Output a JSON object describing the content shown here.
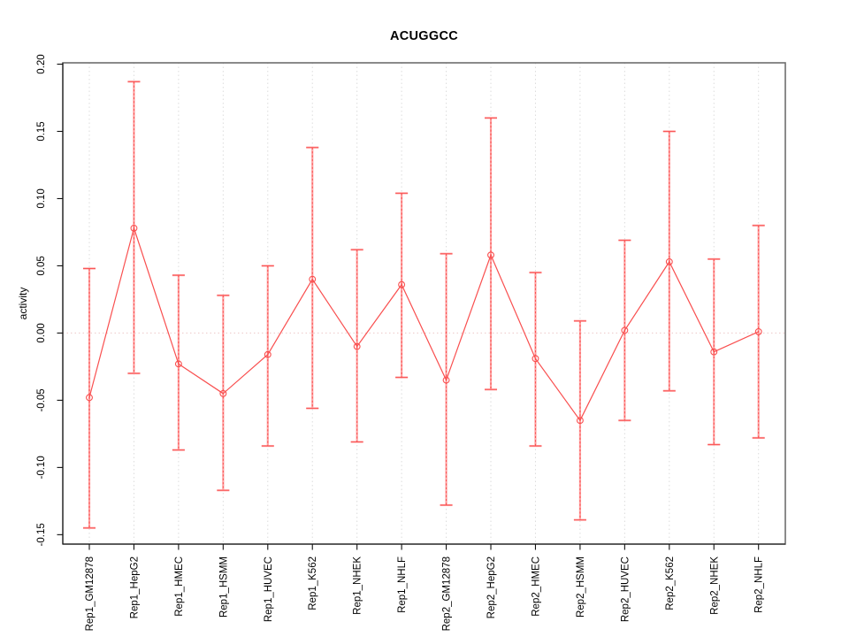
{
  "title": "ACUGGCC",
  "chart_data": {
    "type": "line",
    "subtype": "points-with-error-bars",
    "title": "ACUGGCC",
    "xlabel": "",
    "ylabel": "activity",
    "categories": [
      "Rep1_GM12878",
      "Rep1_HepG2",
      "Rep1_HMEC",
      "Rep1_HSMM",
      "Rep1_HUVEC",
      "Rep1_K562",
      "Rep1_NHEK",
      "Rep1_NHLF",
      "Rep2_GM12878",
      "Rep2_HepG2",
      "Rep2_HMEC",
      "Rep2_HSMM",
      "Rep2_HUVEC",
      "Rep2_K562",
      "Rep2_NHEK",
      "Rep2_NHLF"
    ],
    "values": [
      -0.048,
      0.078,
      -0.023,
      -0.045,
      -0.016,
      0.04,
      -0.01,
      0.036,
      -0.035,
      0.058,
      -0.019,
      -0.065,
      0.002,
      0.053,
      -0.014,
      0.001
    ],
    "error_upper": [
      0.048,
      0.187,
      0.043,
      0.028,
      0.05,
      0.138,
      0.062,
      0.104,
      0.059,
      0.16,
      0.045,
      0.009,
      0.069,
      0.15,
      0.055,
      0.08
    ],
    "error_lower": [
      -0.145,
      -0.03,
      -0.087,
      -0.117,
      -0.084,
      -0.056,
      -0.081,
      -0.033,
      -0.128,
      -0.042,
      -0.084,
      -0.139,
      -0.065,
      -0.043,
      -0.083,
      -0.078
    ],
    "ylim": [
      -0.157,
      0.201
    ],
    "yticks": [
      -0.15,
      -0.1,
      -0.05,
      0.0,
      0.05,
      0.1,
      0.15,
      0.2
    ],
    "ytick_labels": [
      "-0.15",
      "-0.10",
      "-0.05",
      "0.00",
      "0.05",
      "0.10",
      "0.15",
      "0.20"
    ],
    "grid": "vertical dotted gridline per category; dotted horizontal line at zero",
    "legend": "none",
    "colors": {
      "point": "#f94f4f",
      "series_line": "#f94f4f",
      "error_bar_solid": "#ffa3a3",
      "error_bar_dashed": "#f94f4f",
      "zero_line": "#edc8c8",
      "gridline": "#dcdcdc",
      "box": "#6e6e6e",
      "axis_tick": "#111111",
      "text": "#000000",
      "background": "#ffffff"
    }
  }
}
